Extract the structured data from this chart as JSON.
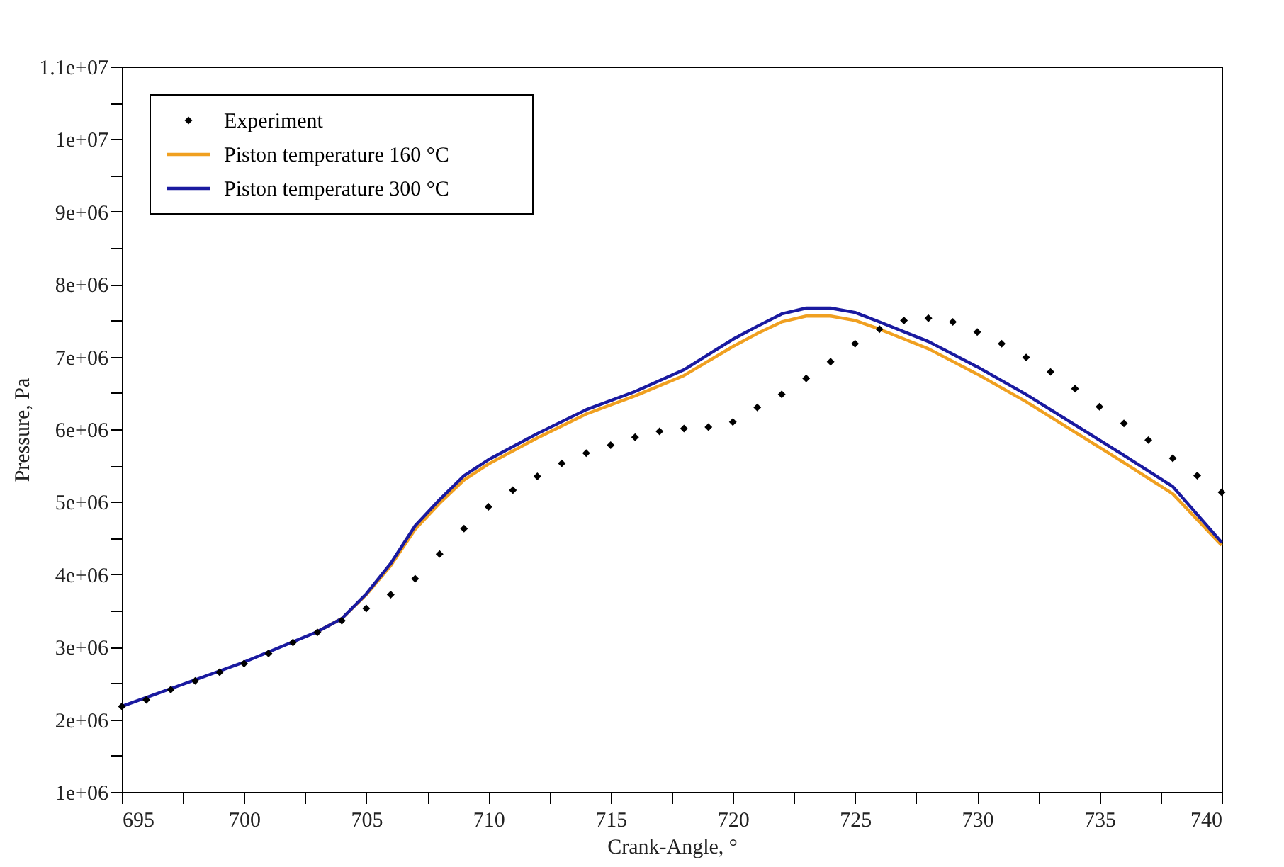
{
  "chart_data": {
    "type": "line",
    "xlabel": "Crank-Angle, °",
    "ylabel": "Pressure, Pa",
    "xlim": [
      695,
      740
    ],
    "ylim": [
      1000000,
      11000000
    ],
    "xticks": [
      695,
      {
        "value": 697.5,
        "label": null
      },
      700,
      {
        "value": 702.5,
        "label": null
      },
      705,
      {
        "value": 707.5,
        "label": null
      },
      710,
      {
        "value": 712.5,
        "label": null
      },
      715,
      {
        "value": 717.5,
        "label": null
      },
      720,
      {
        "value": 722.5,
        "label": null
      },
      725,
      {
        "value": 727.5,
        "label": null
      },
      730,
      {
        "value": 732.5,
        "label": null
      },
      735,
      {
        "value": 737.5,
        "label": null
      },
      740
    ],
    "yticks": [
      {
        "value": 1000000,
        "label": "1e+06"
      },
      {
        "value": 1500000,
        "label": null
      },
      {
        "value": 2000000,
        "label": "2e+06"
      },
      {
        "value": 2500000,
        "label": null
      },
      {
        "value": 3000000,
        "label": "3e+06"
      },
      {
        "value": 3500000,
        "label": null
      },
      {
        "value": 4000000,
        "label": "4e+06"
      },
      {
        "value": 4500000,
        "label": null
      },
      {
        "value": 5000000,
        "label": "5e+06"
      },
      {
        "value": 5500000,
        "label": null
      },
      {
        "value": 6000000,
        "label": "6e+06"
      },
      {
        "value": 6500000,
        "label": null
      },
      {
        "value": 7000000,
        "label": "7e+06"
      },
      {
        "value": 7500000,
        "label": null
      },
      {
        "value": 8000000,
        "label": "8e+06"
      },
      {
        "value": 8500000,
        "label": null
      },
      {
        "value": 9000000,
        "label": "9e+06"
      },
      {
        "value": 9500000,
        "label": null
      },
      {
        "value": 10000000,
        "label": "1e+07"
      },
      {
        "value": 10500000,
        "label": null
      },
      {
        "value": 11000000,
        "label": "1.1e+07"
      }
    ],
    "grid": false,
    "legend": "top left",
    "line_style": "solid",
    "series": [
      {
        "name": "Experiment",
        "type": "scatter",
        "marker": "diamond",
        "color": "#000000",
        "x": [
          695,
          696,
          697,
          698,
          699,
          700,
          701,
          702,
          703,
          704,
          705,
          706,
          707,
          708,
          709,
          710,
          711,
          712,
          713,
          714,
          715,
          716,
          717,
          718,
          719,
          720,
          721,
          722,
          723,
          724,
          725,
          726,
          727,
          728,
          729,
          730,
          731,
          732,
          733,
          734,
          735,
          736,
          737,
          738,
          739,
          740
        ],
        "values": [
          2180000,
          2270000,
          2410000,
          2530000,
          2650000,
          2770000,
          2910000,
          3060000,
          3200000,
          3360000,
          3530000,
          3720000,
          3940000,
          4280000,
          4630000,
          4930000,
          5160000,
          5350000,
          5530000,
          5670000,
          5780000,
          5890000,
          5970000,
          6010000,
          6030000,
          6100000,
          6300000,
          6480000,
          6700000,
          6930000,
          7180000,
          7380000,
          7500000,
          7530000,
          7480000,
          7340000,
          7180000,
          6990000,
          6790000,
          6560000,
          6310000,
          6080000,
          5850000,
          5600000,
          5360000,
          5130000
        ]
      },
      {
        "name": "Piston temperature 160 °C",
        "marker": "none",
        "color": "#f0a020",
        "x": [
          703,
          704,
          705,
          706,
          707,
          708,
          709,
          710,
          712,
          714,
          716,
          718,
          720,
          721,
          722,
          723,
          724,
          725,
          726,
          728,
          730,
          732,
          734,
          736,
          738,
          740
        ],
        "values": [
          3210000,
          3390000,
          3720000,
          4120000,
          4620000,
          4980000,
          5300000,
          5520000,
          5880000,
          6210000,
          6460000,
          6740000,
          7140000,
          7320000,
          7480000,
          7560000,
          7560000,
          7500000,
          7380000,
          7110000,
          6760000,
          6380000,
          5960000,
          5540000,
          5110000,
          4400000
        ]
      },
      {
        "name": "Piston temperature 300 °C",
        "marker": "none",
        "color": "#1a1aa0",
        "x": [
          695,
          700,
          703,
          704,
          705,
          706,
          707,
          708,
          709,
          710,
          712,
          714,
          716,
          718,
          720,
          721,
          722,
          723,
          724,
          725,
          726,
          728,
          730,
          732,
          734,
          736,
          738,
          740
        ],
        "values": [
          2180000,
          2790000,
          3210000,
          3390000,
          3730000,
          4150000,
          4670000,
          5030000,
          5360000,
          5580000,
          5940000,
          6270000,
          6520000,
          6820000,
          7240000,
          7420000,
          7590000,
          7670000,
          7670000,
          7610000,
          7480000,
          7210000,
          6860000,
          6480000,
          6060000,
          5640000,
          5210000,
          4440000
        ]
      }
    ]
  }
}
